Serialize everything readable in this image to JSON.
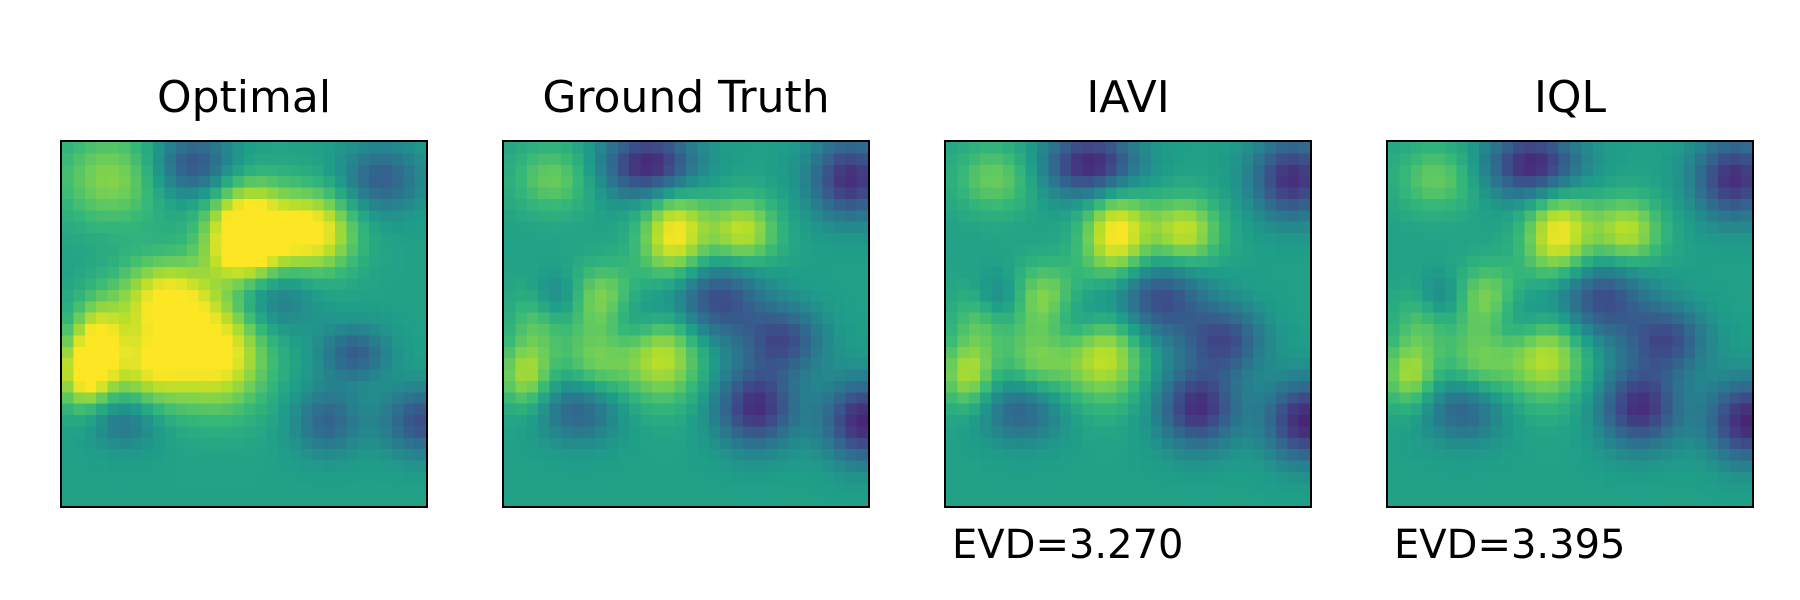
{
  "chart_data": [
    {
      "type": "heatmap",
      "title": "Optimal",
      "annotation": "",
      "colormap": "viridis",
      "grid_size": 32,
      "brightness": 1.0,
      "structure": "a"
    },
    {
      "type": "heatmap",
      "title": "Ground Truth",
      "annotation": "",
      "colormap": "viridis",
      "grid_size": 32,
      "brightness": 0.8,
      "structure": "b"
    },
    {
      "type": "heatmap",
      "title": "IAVI",
      "annotation": "EVD=3.270",
      "colormap": "viridis",
      "grid_size": 32,
      "brightness": 0.82,
      "structure": "b"
    },
    {
      "type": "heatmap",
      "title": "IQL",
      "annotation": "EVD=3.395",
      "colormap": "viridis",
      "grid_size": 32,
      "brightness": 0.78,
      "structure": "b"
    }
  ]
}
